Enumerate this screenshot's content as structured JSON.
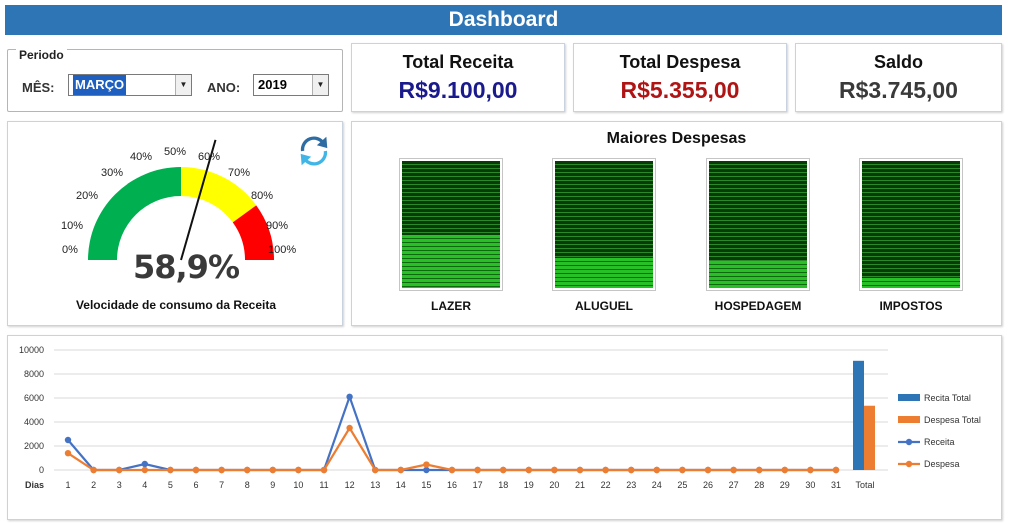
{
  "header": {
    "title": "Dashboard"
  },
  "periodo": {
    "legend": "Periodo",
    "mes_label": "MÊS:",
    "mes_value": "MARÇO",
    "ano_label": "ANO:",
    "ano_value": "2019",
    "dropdown_glyph": "▼"
  },
  "kpis": {
    "receita": {
      "title": "Total Receita",
      "value": "R$9.100,00",
      "color": "#1a1a8c"
    },
    "despesa": {
      "title": "Total Despesa",
      "value": "R$5.355,00",
      "color": "#b01515"
    },
    "saldo": {
      "title": "Saldo",
      "value": "R$3.745,00",
      "color": "#3a3a3a"
    }
  },
  "gauge": {
    "ticks": [
      "0%",
      "10%",
      "20%",
      "30%",
      "40%",
      "50%",
      "60%",
      "70%",
      "80%",
      "90%",
      "100%"
    ],
    "value_text": "58,9%",
    "value": 58.9,
    "caption": "Velocidade de consumo da Receita",
    "refresh_icon": "refresh-icon",
    "colors": {
      "green": "#00b050",
      "yellow": "#ffff00",
      "red": "#ff0000"
    }
  },
  "maiores_despesas": {
    "title": "Maiores Despesas",
    "items": [
      {
        "label": "LAZER",
        "fill": 0.42
      },
      {
        "label": "ALUGUEL",
        "fill": 0.24
      },
      {
        "label": "HOSPEDAGEM",
        "fill": 0.21
      },
      {
        "label": "IMPOSTOS",
        "fill": 0.08
      }
    ]
  },
  "chart_data": {
    "type": "line",
    "xlabel": "Dias",
    "ylim": [
      0,
      10000
    ],
    "yticks": [
      0,
      2000,
      4000,
      6000,
      8000,
      10000
    ],
    "categories": [
      "1",
      "2",
      "3",
      "4",
      "5",
      "6",
      "7",
      "8",
      "9",
      "10",
      "11",
      "12",
      "13",
      "14",
      "15",
      "16",
      "17",
      "18",
      "19",
      "20",
      "21",
      "22",
      "23",
      "24",
      "25",
      "26",
      "27",
      "28",
      "29",
      "30",
      "31"
    ],
    "series": [
      {
        "name": "Receita",
        "color": "#4472c4",
        "values": [
          2500,
          0,
          0,
          500,
          0,
          0,
          0,
          0,
          0,
          0,
          0,
          6100,
          0,
          0,
          0,
          0,
          0,
          0,
          0,
          0,
          0,
          0,
          0,
          0,
          0,
          0,
          0,
          0,
          0,
          0,
          0
        ]
      },
      {
        "name": "Despesa",
        "color": "#ed7d31",
        "values": [
          1400,
          0,
          0,
          0,
          0,
          0,
          0,
          0,
          0,
          0,
          0,
          3500,
          0,
          0,
          455,
          0,
          0,
          0,
          0,
          0,
          0,
          0,
          0,
          0,
          0,
          0,
          0,
          0,
          0,
          0,
          0
        ]
      }
    ],
    "total_category": "Total",
    "totals": [
      {
        "name": "Recita Total",
        "value": 9100,
        "color": "#2e75b6"
      },
      {
        "name": "Despesa Total",
        "value": 5355,
        "color": "#ed7d31"
      }
    ],
    "legend_position": "right"
  }
}
